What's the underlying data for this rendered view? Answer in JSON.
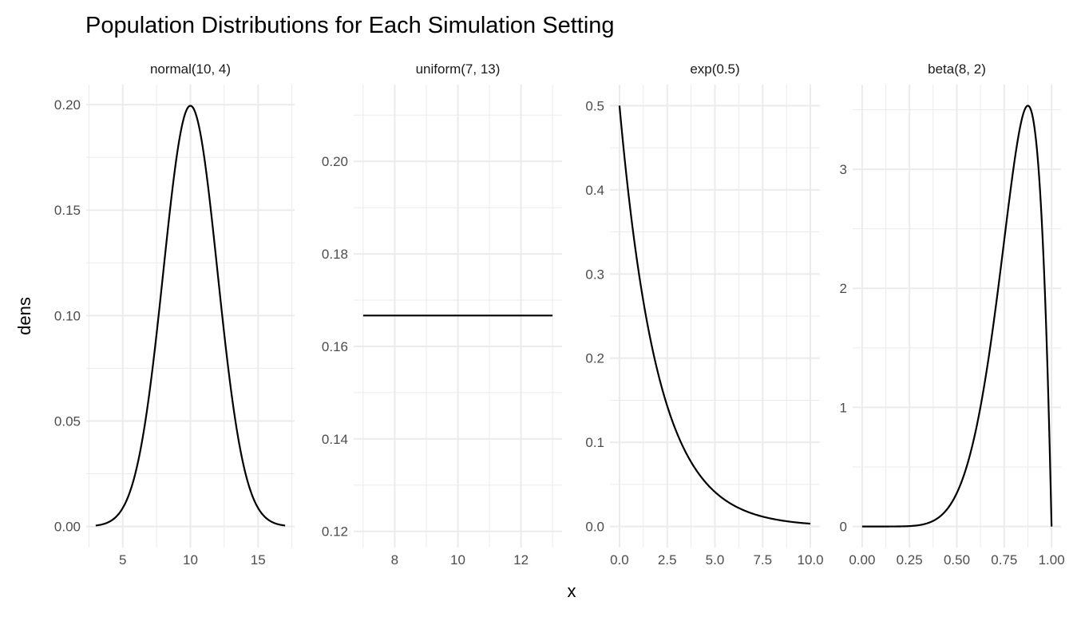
{
  "chart_data": {
    "type": "line",
    "title": "Population Distributions for Each Simulation Setting",
    "xlabel": "x",
    "ylabel": "dens",
    "grid": true,
    "legend": "none",
    "panels": [
      {
        "strip": "normal(10, 4)",
        "dist": "normal",
        "params": {
          "mean": 10,
          "variance": 4
        },
        "x_from": 3,
        "x_to": 17,
        "xlim": [
          2.3,
          17.7
        ],
        "ylim": [
          -0.01,
          0.2095
        ],
        "xticks": [
          5,
          10,
          15
        ],
        "xtick_labels": [
          "5",
          "10",
          "15"
        ],
        "yticks": [
          0,
          0.05,
          0.1,
          0.15,
          0.2
        ],
        "ytick_labels": [
          "0.00",
          "0.05",
          "0.10",
          "0.15",
          "0.20"
        ]
      },
      {
        "strip": "uniform(7, 13)",
        "dist": "uniform",
        "params": {
          "min": 7,
          "max": 13
        },
        "x_from": 7,
        "x_to": 13,
        "xlim": [
          6.7,
          13.3
        ],
        "ylim": [
          0.1165,
          0.2166
        ],
        "xticks": [
          8,
          10,
          12
        ],
        "xtick_labels": [
          "8",
          "10",
          "12"
        ],
        "yticks": [
          0.12,
          0.14,
          0.16,
          0.18,
          0.2
        ],
        "ytick_labels": [
          "0.12",
          "0.14",
          "0.16",
          "0.18",
          "0.20"
        ]
      },
      {
        "strip": "exp(0.5)",
        "dist": "exp",
        "params": {
          "rate": 0.5
        },
        "x_from": 0,
        "x_to": 10,
        "xlim": [
          -0.5,
          10.5
        ],
        "ylim": [
          -0.025,
          0.525
        ],
        "xticks": [
          0,
          2.5,
          5,
          7.5,
          10
        ],
        "xtick_labels": [
          "0.0",
          "2.5",
          "5.0",
          "7.5",
          "10.0"
        ],
        "yticks": [
          0,
          0.1,
          0.2,
          0.3,
          0.4,
          0.5
        ],
        "ytick_labels": [
          "0.0",
          "0.1",
          "0.2",
          "0.3",
          "0.4",
          "0.5"
        ]
      },
      {
        "strip": "beta(8, 2)",
        "dist": "beta",
        "params": {
          "a": 8,
          "b": 2
        },
        "x_from": 0,
        "x_to": 1,
        "xlim": [
          -0.05,
          1.05
        ],
        "ylim": [
          -0.177,
          3.711
        ],
        "xticks": [
          0,
          0.25,
          0.5,
          0.75,
          1
        ],
        "xtick_labels": [
          "0.00",
          "0.25",
          "0.50",
          "0.75",
          "1.00"
        ],
        "yticks": [
          0,
          1,
          2,
          3
        ],
        "ytick_labels": [
          "0",
          "1",
          "2",
          "3"
        ]
      }
    ]
  }
}
